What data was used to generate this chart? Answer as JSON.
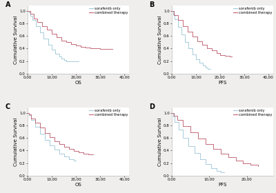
{
  "background_color": "#f0eeec",
  "panel_bg": "#ffffff",
  "label_fontsize": 5.0,
  "tick_fontsize": 4.0,
  "legend_fontsize": 3.8,
  "panel_label_fontsize": 7,
  "panels": [
    {
      "label": "A",
      "xlabel": "OS",
      "ylabel": "Cumulative Survival",
      "xlim": [
        0,
        42000
      ],
      "xticks": [
        0,
        10000,
        20000,
        30000,
        40000
      ],
      "xticklabels": [
        "0.00",
        "10,00",
        "20,00",
        "30,00",
        "40,00"
      ],
      "ylim": [
        0.0,
        1.08
      ],
      "yticks": [
        0.0,
        0.2,
        0.4,
        0.6,
        0.8,
        1.0
      ],
      "sorafenib_x": [
        0,
        500,
        1200,
        2000,
        3500,
        5000,
        6500,
        8500,
        10000,
        11500,
        13000,
        14000,
        15000,
        16000,
        20000,
        21000
      ],
      "sorafenib_y": [
        1.0,
        0.97,
        0.92,
        0.85,
        0.76,
        0.66,
        0.56,
        0.46,
        0.38,
        0.32,
        0.27,
        0.24,
        0.22,
        0.2,
        0.2,
        0.2
      ],
      "combined_x": [
        0,
        1000,
        2500,
        4000,
        6000,
        8000,
        10000,
        12000,
        14000,
        16000,
        18000,
        20000,
        22000,
        24000,
        26000,
        28000,
        30000,
        35000
      ],
      "combined_y": [
        1.0,
        0.95,
        0.88,
        0.82,
        0.76,
        0.7,
        0.64,
        0.58,
        0.53,
        0.5,
        0.47,
        0.45,
        0.43,
        0.42,
        0.41,
        0.4,
        0.39,
        0.39
      ]
    },
    {
      "label": "B",
      "xlabel": "PFS",
      "ylabel": "Cumulative Survival",
      "xlim": [
        0,
        42000
      ],
      "xticks": [
        0,
        10000,
        20000,
        30000,
        40000
      ],
      "xticklabels": [
        "0.00",
        "10,00",
        "20,00",
        "30,00",
        "40,00"
      ],
      "ylim": [
        0.0,
        1.08
      ],
      "yticks": [
        0.0,
        0.2,
        0.4,
        0.6,
        0.8,
        1.0
      ],
      "sorafenib_x": [
        0,
        500,
        1200,
        2500,
        4000,
        5500,
        7000,
        8500,
        10000,
        11500,
        13000,
        14000,
        15000,
        16000
      ],
      "sorafenib_y": [
        1.0,
        0.94,
        0.86,
        0.74,
        0.62,
        0.5,
        0.4,
        0.31,
        0.23,
        0.18,
        0.13,
        0.1,
        0.08,
        0.08
      ],
      "combined_x": [
        0,
        1000,
        2500,
        4500,
        6500,
        8500,
        10500,
        12500,
        14500,
        16500,
        18500,
        20000,
        22000,
        24000,
        25000
      ],
      "combined_y": [
        1.0,
        0.93,
        0.85,
        0.76,
        0.67,
        0.59,
        0.52,
        0.46,
        0.41,
        0.37,
        0.33,
        0.3,
        0.28,
        0.27,
        0.27
      ]
    },
    {
      "label": "C",
      "xlabel": "OS",
      "ylabel": "Cumulative Survival",
      "xlim": [
        0,
        42000
      ],
      "xticks": [
        0,
        10000,
        20000,
        30000,
        40000
      ],
      "xticklabels": [
        "0.00",
        "10,00",
        "20,00",
        "30,00",
        "40,00"
      ],
      "ylim": [
        0.0,
        1.08
      ],
      "yticks": [
        0.0,
        0.2,
        0.4,
        0.6,
        0.8,
        1.0
      ],
      "sorafenib_x": [
        0,
        500,
        1500,
        3000,
        5000,
        7000,
        9000,
        11000,
        13000,
        15000,
        17000,
        19000,
        20000
      ],
      "sorafenib_y": [
        1.0,
        0.96,
        0.88,
        0.78,
        0.67,
        0.57,
        0.48,
        0.41,
        0.35,
        0.3,
        0.26,
        0.24,
        0.24
      ],
      "combined_x": [
        0,
        500,
        1500,
        3000,
        5000,
        7000,
        9000,
        11000,
        13000,
        15000,
        17000,
        19000,
        21000,
        23000,
        25000,
        27000
      ],
      "combined_y": [
        1.0,
        0.97,
        0.91,
        0.84,
        0.76,
        0.68,
        0.61,
        0.55,
        0.5,
        0.46,
        0.42,
        0.39,
        0.37,
        0.35,
        0.34,
        0.34
      ]
    },
    {
      "label": "D",
      "xlabel": "PFS",
      "ylabel": "Cumulative Survival",
      "xlim": [
        0,
        27000
      ],
      "xticks": [
        0,
        10000,
        20000
      ],
      "xticklabels": [
        "0.00",
        "10,00",
        "20,00"
      ],
      "ylim": [
        0.0,
        1.08
      ],
      "yticks": [
        0.0,
        0.2,
        0.4,
        0.6,
        0.8,
        1.0
      ],
      "sorafenib_x": [
        0,
        300,
        800,
        1800,
        3000,
        4500,
        6000,
        7500,
        9000,
        10500,
        12000,
        13000,
        14000
      ],
      "sorafenib_y": [
        1.0,
        0.94,
        0.85,
        0.73,
        0.6,
        0.47,
        0.36,
        0.26,
        0.18,
        0.12,
        0.07,
        0.05,
        0.05
      ],
      "combined_x": [
        0,
        500,
        1500,
        3000,
        5000,
        7000,
        9000,
        11000,
        13000,
        15000,
        17000,
        19000,
        21000,
        23000
      ],
      "combined_y": [
        1.0,
        0.95,
        0.88,
        0.79,
        0.69,
        0.59,
        0.5,
        0.42,
        0.35,
        0.29,
        0.24,
        0.2,
        0.17,
        0.15
      ]
    }
  ],
  "sorafenib_color": "#a0c8d8",
  "combined_color": "#c06070",
  "sorafenib_label": "sorafenib only",
  "combined_label": "combined therapy"
}
